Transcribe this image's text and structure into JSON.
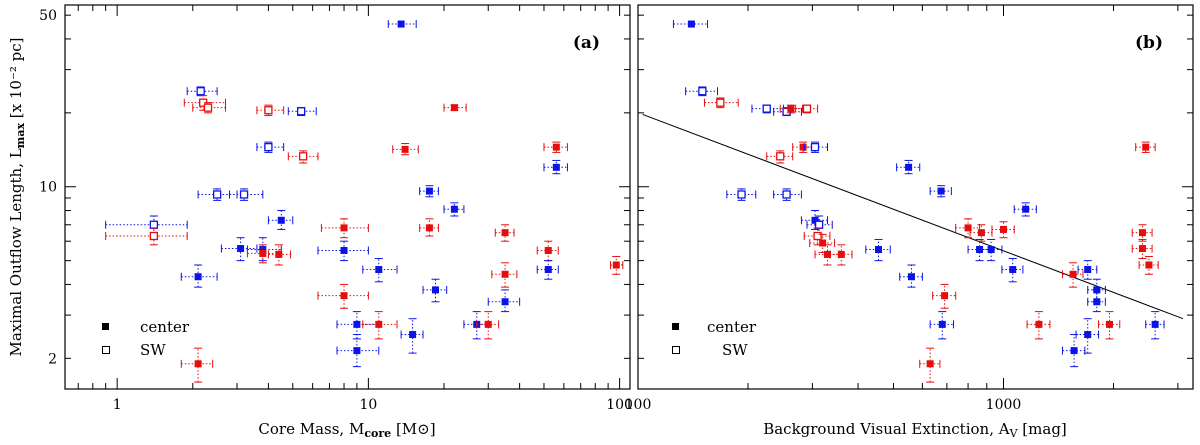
{
  "chart_data": [
    {
      "type": "scatter",
      "panel_tag": "(a)",
      "xscale": "log",
      "yscale": "log",
      "xlim": [
        0.62,
        110
      ],
      "ylim": [
        1.5,
        55
      ],
      "xlabel": "Core Mass, M",
      "xlabel_sub": "core",
      "xlabel_unit": " [M⊙]",
      "ylabel": "Maximal Outflow Length, L",
      "ylabel_sub": "max",
      "ylabel_unit": " [x 10⁻² pc]",
      "xticks": [
        {
          "v": 1,
          "label": "1"
        },
        {
          "v": 10,
          "label": "10"
        },
        {
          "v": 100,
          "label": "100"
        }
      ],
      "yticks": [
        {
          "v": 2,
          "label": "2"
        },
        {
          "v": 10,
          "label": "10"
        },
        {
          "v": 50,
          "label": "50"
        }
      ],
      "colors": {
        "blue": "#0a14e6",
        "red": "#e60d0d"
      },
      "legend": [
        {
          "marker": "filled",
          "label": "center"
        },
        {
          "marker": "open",
          "label": "SW"
        }
      ],
      "points": [
        {
          "x": 13.5,
          "y": 46,
          "xl": 12,
          "xh": 15.5,
          "yl": 46,
          "yh": 46,
          "c": "blue",
          "f": true
        },
        {
          "x": 2.15,
          "y": 24.5,
          "xl": 1.9,
          "xh": 2.5,
          "yl": 23.5,
          "yh": 25.5,
          "c": "blue",
          "f": false
        },
        {
          "x": 2.2,
          "y": 22,
          "xl": 1.85,
          "xh": 2.7,
          "yl": 20.5,
          "yh": 23.5,
          "c": "red",
          "f": false
        },
        {
          "x": 2.3,
          "y": 21,
          "xl": 2,
          "xh": 2.7,
          "yl": 20,
          "yh": 22,
          "c": "red",
          "f": false
        },
        {
          "x": 4.0,
          "y": 20.5,
          "xl": 3.6,
          "xh": 4.6,
          "yl": 19.5,
          "yh": 21.5,
          "c": "red",
          "f": false
        },
        {
          "x": 5.4,
          "y": 20.3,
          "xl": 4.8,
          "xh": 6.2,
          "yl": 19.5,
          "yh": 21,
          "c": "blue",
          "f": false
        },
        {
          "x": 22,
          "y": 21,
          "xl": 20,
          "xh": 24.5,
          "yl": 20.5,
          "yh": 21.5,
          "c": "red",
          "f": true
        },
        {
          "x": 4.0,
          "y": 14.5,
          "xl": 3.6,
          "xh": 4.6,
          "yl": 13.8,
          "yh": 15.2,
          "c": "blue",
          "f": false
        },
        {
          "x": 5.5,
          "y": 13.3,
          "xl": 4.8,
          "xh": 6.3,
          "yl": 12.5,
          "yh": 14,
          "c": "red",
          "f": false
        },
        {
          "x": 14,
          "y": 14.2,
          "xl": 12.5,
          "xh": 15.8,
          "yl": 13.5,
          "yh": 15,
          "c": "red",
          "f": true
        },
        {
          "x": 56,
          "y": 14.5,
          "xl": 50,
          "xh": 62,
          "yl": 13.8,
          "yh": 15.2,
          "c": "red",
          "f": true
        },
        {
          "x": 56,
          "y": 12,
          "xl": 50,
          "xh": 62,
          "yl": 11.3,
          "yh": 12.8,
          "c": "blue",
          "f": true
        },
        {
          "x": 2.5,
          "y": 9.3,
          "xl": 2.1,
          "xh": 3.0,
          "yl": 8.8,
          "yh": 9.8,
          "c": "blue",
          "f": false
        },
        {
          "x": 3.2,
          "y": 9.3,
          "xl": 2.8,
          "xh": 3.8,
          "yl": 8.8,
          "yh": 9.8,
          "c": "blue",
          "f": false
        },
        {
          "x": 1.4,
          "y": 7.0,
          "xl": 0.9,
          "xh": 1.9,
          "yl": 6.4,
          "yh": 7.6,
          "c": "blue",
          "f": false
        },
        {
          "x": 1.4,
          "y": 6.3,
          "xl": 0.9,
          "xh": 1.9,
          "yl": 5.8,
          "yh": 6.8,
          "c": "red",
          "f": false
        },
        {
          "x": 17.5,
          "y": 9.6,
          "xl": 16,
          "xh": 19,
          "yl": 9.1,
          "yh": 10.1,
          "c": "blue",
          "f": true
        },
        {
          "x": 22,
          "y": 8.1,
          "xl": 20,
          "xh": 24,
          "yl": 7.6,
          "yh": 8.6,
          "c": "blue",
          "f": true
        },
        {
          "x": 4.5,
          "y": 7.3,
          "xl": 4,
          "xh": 5,
          "yl": 6.7,
          "yh": 8,
          "c": "blue",
          "f": true
        },
        {
          "x": 8,
          "y": 6.8,
          "xl": 6.5,
          "xh": 10,
          "yl": 6.2,
          "yh": 7.4,
          "c": "red",
          "f": true
        },
        {
          "x": 17.5,
          "y": 6.8,
          "xl": 16,
          "xh": 19,
          "yl": 6.3,
          "yh": 7.4,
          "c": "red",
          "f": true
        },
        {
          "x": 35,
          "y": 6.5,
          "xl": 32,
          "xh": 38,
          "yl": 6,
          "yh": 7,
          "c": "red",
          "f": true
        },
        {
          "x": 3.1,
          "y": 5.6,
          "xl": 2.6,
          "xh": 3.6,
          "yl": 5.0,
          "yh": 6.2,
          "c": "blue",
          "f": true
        },
        {
          "x": 3.8,
          "y": 5.55,
          "xl": 3.3,
          "xh": 4.5,
          "yl": 5.0,
          "yh": 6.2,
          "c": "blue",
          "f": true
        },
        {
          "x": 3.8,
          "y": 5.35,
          "xl": 3.3,
          "xh": 4.5,
          "yl": 4.9,
          "yh": 5.8,
          "c": "red",
          "f": true
        },
        {
          "x": 4.4,
          "y": 5.3,
          "xl": 4.0,
          "xh": 4.9,
          "yl": 4.8,
          "yh": 5.8,
          "c": "red",
          "f": true
        },
        {
          "x": 8,
          "y": 5.5,
          "xl": 6.3,
          "xh": 10,
          "yl": 5,
          "yh": 6,
          "c": "blue",
          "f": true
        },
        {
          "x": 52,
          "y": 5.5,
          "xl": 47,
          "xh": 57,
          "yl": 5,
          "yh": 6,
          "c": "red",
          "f": true
        },
        {
          "x": 97,
          "y": 4.8,
          "xl": 92,
          "xh": 103,
          "yl": 4.4,
          "yh": 5.2,
          "c": "red",
          "f": true
        },
        {
          "x": 2.1,
          "y": 4.3,
          "xl": 1.8,
          "xh": 2.5,
          "yl": 3.9,
          "yh": 4.8,
          "c": "blue",
          "f": true
        },
        {
          "x": 11,
          "y": 4.6,
          "xl": 9.5,
          "xh": 13,
          "yl": 4.1,
          "yh": 5.1,
          "c": "blue",
          "f": true
        },
        {
          "x": 35,
          "y": 4.4,
          "xl": 31,
          "xh": 39,
          "yl": 3.9,
          "yh": 4.9,
          "c": "red",
          "f": true
        },
        {
          "x": 52,
          "y": 4.6,
          "xl": 47,
          "xh": 57,
          "yl": 4.2,
          "yh": 5.0,
          "c": "blue",
          "f": true
        },
        {
          "x": 18.5,
          "y": 3.8,
          "xl": 16.5,
          "xh": 20.5,
          "yl": 3.4,
          "yh": 4.2,
          "c": "blue",
          "f": true
        },
        {
          "x": 8,
          "y": 3.6,
          "xl": 6.3,
          "xh": 10,
          "yl": 3.2,
          "yh": 4.0,
          "c": "red",
          "f": true
        },
        {
          "x": 35,
          "y": 3.4,
          "xl": 30,
          "xh": 40,
          "yl": 3.1,
          "yh": 3.8,
          "c": "blue",
          "f": true
        },
        {
          "x": 9,
          "y": 2.75,
          "xl": 7.5,
          "xh": 11,
          "yl": 2.4,
          "yh": 3.1,
          "c": "blue",
          "f": true
        },
        {
          "x": 11,
          "y": 2.75,
          "xl": 9.5,
          "xh": 13,
          "yl": 2.4,
          "yh": 3.1,
          "c": "red",
          "f": true
        },
        {
          "x": 15,
          "y": 2.5,
          "xl": 13.5,
          "xh": 16.5,
          "yl": 2.1,
          "yh": 2.9,
          "c": "blue",
          "f": true
        },
        {
          "x": 27,
          "y": 2.75,
          "xl": 24,
          "xh": 30,
          "yl": 2.4,
          "yh": 3.1,
          "c": "blue",
          "f": true
        },
        {
          "x": 30,
          "y": 2.75,
          "xl": 27,
          "xh": 33,
          "yl": 2.4,
          "yh": 3.1,
          "c": "red",
          "f": true
        },
        {
          "x": 9,
          "y": 2.15,
          "xl": 7.5,
          "xh": 11,
          "yl": 1.85,
          "yh": 2.5,
          "c": "blue",
          "f": true
        },
        {
          "x": 2.1,
          "y": 1.9,
          "xl": 1.8,
          "xh": 2.4,
          "yl": 1.6,
          "yh": 2.2,
          "c": "red",
          "f": true
        }
      ]
    },
    {
      "type": "scatter",
      "panel_tag": "(b)",
      "xscale": "log",
      "yscale": "log",
      "xlim": [
        100,
        3300
      ],
      "ylim": [
        1.5,
        55
      ],
      "xlabel": "Background Visual Extinction, A",
      "xlabel_sub": "V",
      "xlabel_unit": " [mag]",
      "xticks": [
        {
          "v": 100,
          "label": "100"
        },
        {
          "v": 1000,
          "label": "1000"
        }
      ],
      "fit_line": {
        "x": [
          103,
          3100
        ],
        "y": [
          19.7,
          2.9
        ]
      },
      "legend": [
        {
          "marker": "filled",
          "label": "center"
        },
        {
          "marker": "open",
          "label": "SW"
        }
      ],
      "points": [
        {
          "x": 140,
          "y": 46,
          "xl": 125,
          "xh": 155,
          "yl": 46,
          "yh": 46,
          "c": "blue",
          "f": true
        },
        {
          "x": 150,
          "y": 24.5,
          "xl": 135,
          "xh": 165,
          "yl": 23.5,
          "yh": 25.5,
          "c": "blue",
          "f": false
        },
        {
          "x": 168,
          "y": 22,
          "xl": 152,
          "xh": 188,
          "yl": 21,
          "yh": 23,
          "c": "red",
          "f": false
        },
        {
          "x": 225,
          "y": 20.8,
          "xl": 205,
          "xh": 250,
          "yl": 20,
          "yh": 21.5,
          "c": "blue",
          "f": false
        },
        {
          "x": 255,
          "y": 20.2,
          "xl": 235,
          "xh": 280,
          "yl": 19.5,
          "yh": 21,
          "c": "blue",
          "f": false
        },
        {
          "x": 262,
          "y": 20.8,
          "xl": 245,
          "xh": 282,
          "yl": 20,
          "yh": 21.5,
          "c": "red",
          "f": true
        },
        {
          "x": 290,
          "y": 20.8,
          "xl": 270,
          "xh": 310,
          "yl": 20,
          "yh": 21.5,
          "c": "red",
          "f": false
        },
        {
          "x": 283,
          "y": 14.5,
          "xl": 265,
          "xh": 300,
          "yl": 13.8,
          "yh": 15.2,
          "c": "red",
          "f": true
        },
        {
          "x": 305,
          "y": 14.5,
          "xl": 285,
          "xh": 330,
          "yl": 13.8,
          "yh": 15.2,
          "c": "blue",
          "f": false
        },
        {
          "x": 245,
          "y": 13.3,
          "xl": 225,
          "xh": 265,
          "yl": 12.5,
          "yh": 14,
          "c": "red",
          "f": false
        },
        {
          "x": 550,
          "y": 12,
          "xl": 510,
          "xh": 590,
          "yl": 11.3,
          "yh": 12.8,
          "c": "blue",
          "f": true
        },
        {
          "x": 2450,
          "y": 14.5,
          "xl": 2300,
          "xh": 2600,
          "yl": 13.8,
          "yh": 15.2,
          "c": "red",
          "f": true
        },
        {
          "x": 192,
          "y": 9.3,
          "xl": 175,
          "xh": 210,
          "yl": 8.8,
          "yh": 9.8,
          "c": "blue",
          "f": false
        },
        {
          "x": 255,
          "y": 9.3,
          "xl": 235,
          "xh": 280,
          "yl": 8.8,
          "yh": 9.8,
          "c": "blue",
          "f": false
        },
        {
          "x": 675,
          "y": 9.6,
          "xl": 630,
          "xh": 720,
          "yl": 9.1,
          "yh": 10.1,
          "c": "blue",
          "f": true
        },
        {
          "x": 1150,
          "y": 8.1,
          "xl": 1070,
          "xh": 1230,
          "yl": 7.6,
          "yh": 8.6,
          "c": "blue",
          "f": true
        },
        {
          "x": 305,
          "y": 7.3,
          "xl": 280,
          "xh": 330,
          "yl": 6.7,
          "yh": 8,
          "c": "blue",
          "f": true
        },
        {
          "x": 313,
          "y": 7.0,
          "xl": 290,
          "xh": 340,
          "yl": 6.4,
          "yh": 7.6,
          "c": "blue",
          "f": false
        },
        {
          "x": 310,
          "y": 6.3,
          "xl": 285,
          "xh": 335,
          "yl": 5.8,
          "yh": 6.8,
          "c": "red",
          "f": false
        },
        {
          "x": 320,
          "y": 5.9,
          "xl": 295,
          "xh": 345,
          "yl": 5.4,
          "yh": 6.4,
          "c": "red",
          "f": true
        },
        {
          "x": 800,
          "y": 6.8,
          "xl": 740,
          "xh": 860,
          "yl": 6.2,
          "yh": 7.4,
          "c": "red",
          "f": true
        },
        {
          "x": 870,
          "y": 6.5,
          "xl": 810,
          "xh": 930,
          "yl": 6,
          "yh": 7,
          "c": "red",
          "f": true
        },
        {
          "x": 1000,
          "y": 6.7,
          "xl": 930,
          "xh": 1070,
          "yl": 6.2,
          "yh": 7.2,
          "c": "red",
          "f": true
        },
        {
          "x": 2400,
          "y": 6.5,
          "xl": 2250,
          "xh": 2550,
          "yl": 6,
          "yh": 7,
          "c": "red",
          "f": true
        },
        {
          "x": 2400,
          "y": 5.6,
          "xl": 2250,
          "xh": 2550,
          "yl": 5.1,
          "yh": 6.1,
          "c": "red",
          "f": true
        },
        {
          "x": 2500,
          "y": 4.8,
          "xl": 2350,
          "xh": 2650,
          "yl": 4.4,
          "yh": 5.2,
          "c": "red",
          "f": true
        },
        {
          "x": 330,
          "y": 5.3,
          "xl": 305,
          "xh": 355,
          "yl": 4.8,
          "yh": 5.8,
          "c": "red",
          "f": true
        },
        {
          "x": 360,
          "y": 5.3,
          "xl": 335,
          "xh": 385,
          "yl": 4.8,
          "yh": 5.8,
          "c": "red",
          "f": true
        },
        {
          "x": 455,
          "y": 5.55,
          "xl": 420,
          "xh": 490,
          "yl": 5.0,
          "yh": 6.1,
          "c": "blue",
          "f": true
        },
        {
          "x": 860,
          "y": 5.55,
          "xl": 800,
          "xh": 920,
          "yl": 5.0,
          "yh": 6.1,
          "c": "blue",
          "f": true
        },
        {
          "x": 925,
          "y": 5.55,
          "xl": 860,
          "xh": 990,
          "yl": 5.0,
          "yh": 6.1,
          "c": "blue",
          "f": true
        },
        {
          "x": 1060,
          "y": 4.6,
          "xl": 990,
          "xh": 1130,
          "yl": 4.1,
          "yh": 5.1,
          "c": "blue",
          "f": true
        },
        {
          "x": 1550,
          "y": 4.4,
          "xl": 1450,
          "xh": 1650,
          "yl": 3.9,
          "yh": 4.9,
          "c": "red",
          "f": true
        },
        {
          "x": 1700,
          "y": 4.6,
          "xl": 1600,
          "xh": 1800,
          "yl": 4.2,
          "yh": 5.0,
          "c": "blue",
          "f": true
        },
        {
          "x": 560,
          "y": 4.3,
          "xl": 520,
          "xh": 600,
          "yl": 3.9,
          "yh": 4.8,
          "c": "blue",
          "f": true
        },
        {
          "x": 1800,
          "y": 3.8,
          "xl": 1700,
          "xh": 1900,
          "yl": 3.4,
          "yh": 4.2,
          "c": "blue",
          "f": true
        },
        {
          "x": 1800,
          "y": 3.4,
          "xl": 1700,
          "xh": 1900,
          "yl": 3.1,
          "yh": 3.8,
          "c": "blue",
          "f": true
        },
        {
          "x": 690,
          "y": 3.6,
          "xl": 640,
          "xh": 740,
          "yl": 3.2,
          "yh": 4.0,
          "c": "red",
          "f": true
        },
        {
          "x": 680,
          "y": 2.75,
          "xl": 630,
          "xh": 730,
          "yl": 2.4,
          "yh": 3.1,
          "c": "blue",
          "f": true
        },
        {
          "x": 1250,
          "y": 2.75,
          "xl": 1160,
          "xh": 1340,
          "yl": 2.4,
          "yh": 3.1,
          "c": "red",
          "f": true
        },
        {
          "x": 1700,
          "y": 2.5,
          "xl": 1580,
          "xh": 1820,
          "yl": 2.1,
          "yh": 2.9,
          "c": "blue",
          "f": true
        },
        {
          "x": 1950,
          "y": 2.75,
          "xl": 1820,
          "xh": 2080,
          "yl": 2.4,
          "yh": 3.1,
          "c": "red",
          "f": true
        },
        {
          "x": 2600,
          "y": 2.75,
          "xl": 2450,
          "xh": 2750,
          "yl": 2.4,
          "yh": 3.1,
          "c": "blue",
          "f": true
        },
        {
          "x": 1560,
          "y": 2.15,
          "xl": 1450,
          "xh": 1670,
          "yl": 1.85,
          "yh": 2.5,
          "c": "blue",
          "f": true
        },
        {
          "x": 630,
          "y": 1.9,
          "xl": 590,
          "xh": 670,
          "yl": 1.6,
          "yh": 2.2,
          "c": "red",
          "f": true
        }
      ]
    }
  ]
}
